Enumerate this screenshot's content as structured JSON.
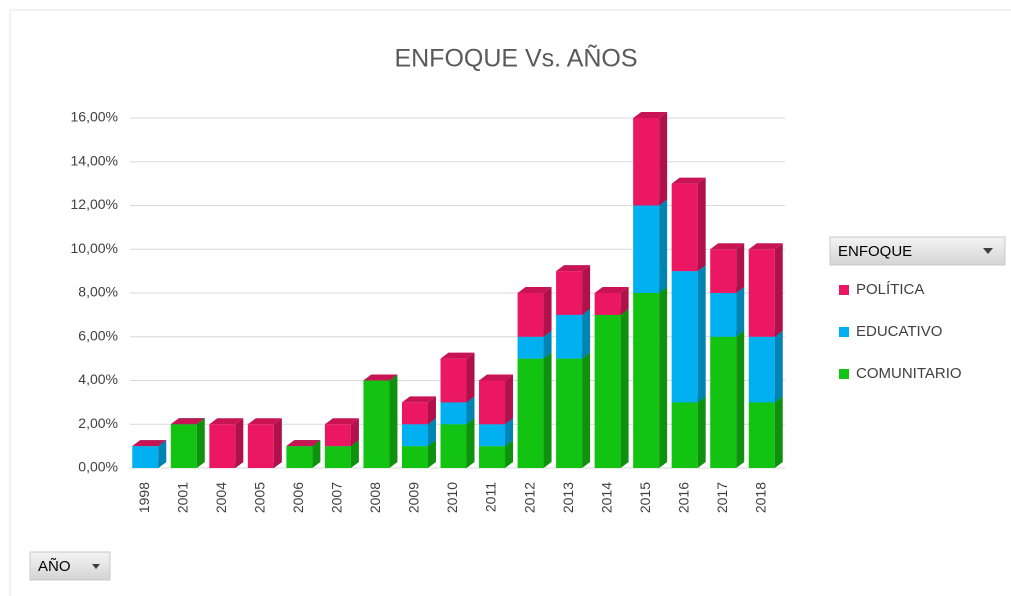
{
  "chart_data": {
    "type": "bar3d_stacked",
    "title": "ENFOQUE Vs. AÑOS",
    "categories": [
      "1998",
      "2001",
      "2004",
      "2005",
      "2006",
      "2007",
      "2008",
      "2009",
      "2010",
      "2011",
      "2012",
      "2013",
      "2014",
      "2015",
      "2016",
      "2017",
      "2018"
    ],
    "series": [
      {
        "name": "COMUNITARIO",
        "color": "#12c312",
        "values": [
          0,
          2,
          0,
          0,
          1,
          1,
          4,
          1,
          2,
          1,
          5,
          5,
          7,
          8,
          3,
          6,
          3
        ]
      },
      {
        "name": "EDUCATIVO",
        "color": "#00b0f0",
        "values": [
          1,
          0,
          0,
          0,
          0,
          0,
          0,
          1,
          1,
          1,
          1,
          2,
          0,
          4,
          6,
          2,
          3
        ]
      },
      {
        "name": "POLÍTICA",
        "color": "#ec1763",
        "values": [
          0,
          0,
          2,
          2,
          0,
          1,
          0,
          1,
          2,
          2,
          2,
          2,
          1,
          4,
          4,
          2,
          4
        ]
      }
    ],
    "ylim": [
      0,
      16
    ],
    "yticks": [
      {
        "value": 0,
        "label": "0,00%"
      },
      {
        "value": 2,
        "label": "2,00%"
      },
      {
        "value": 4,
        "label": "4,00%"
      },
      {
        "value": 6,
        "label": "6,00%"
      },
      {
        "value": 8,
        "label": "8,00%"
      },
      {
        "value": 10,
        "label": "10,00%"
      },
      {
        "value": 12,
        "label": "12,00%"
      },
      {
        "value": 14,
        "label": "14,00%"
      },
      {
        "value": 16,
        "label": "16,00%"
      }
    ],
    "grid": true,
    "legend_title": "ENFOQUE",
    "axis_button": "AÑO"
  }
}
